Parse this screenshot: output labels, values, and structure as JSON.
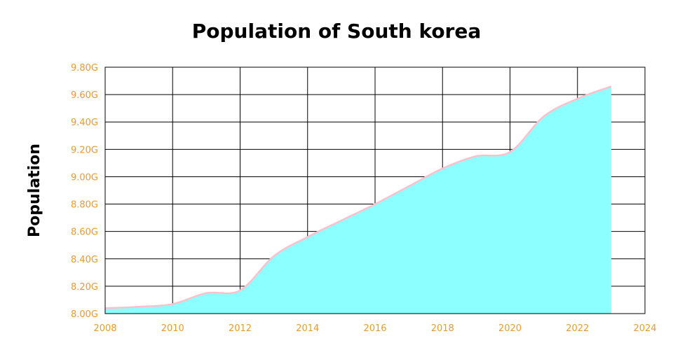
{
  "chart_data": {
    "type": "area",
    "title": "Population of South korea",
    "xlabel": "",
    "ylabel": "Population",
    "x": [
      2008,
      2009,
      2010,
      2011,
      2012,
      2013,
      2014,
      2015,
      2016,
      2017,
      2018,
      2019,
      2020,
      2021,
      2022,
      2023
    ],
    "series": [
      {
        "values": [
          8.04,
          8.05,
          8.07,
          8.15,
          8.17,
          8.42,
          8.56,
          8.68,
          8.8,
          8.93,
          9.06,
          9.15,
          9.18,
          9.44,
          9.57,
          9.66
        ]
      }
    ],
    "xlim": [
      2008,
      2024
    ],
    "ylim": [
      8.0,
      9.8
    ],
    "x_ticks": [
      2008,
      2010,
      2012,
      2014,
      2016,
      2018,
      2020,
      2022,
      2024
    ],
    "x_tick_labels": [
      "2008",
      "2010",
      "2012",
      "2014",
      "2016",
      "2018",
      "2020",
      "2022",
      "2024"
    ],
    "y_ticks": [
      8.0,
      8.2,
      8.4,
      8.6,
      8.8,
      9.0,
      9.2,
      9.4,
      9.6,
      9.8
    ],
    "y_tick_labels": [
      "8.00G",
      "8.20G",
      "8.40G",
      "8.60G",
      "8.80G",
      "9.00G",
      "9.20G",
      "9.40G",
      "9.60G",
      "9.80G"
    ],
    "grid": true,
    "legend": "none",
    "colors": {
      "area_fill": "#8cffff",
      "line": "#ffc0cb",
      "tick_labels": "#ea9a2e",
      "grid": "#000000"
    }
  }
}
